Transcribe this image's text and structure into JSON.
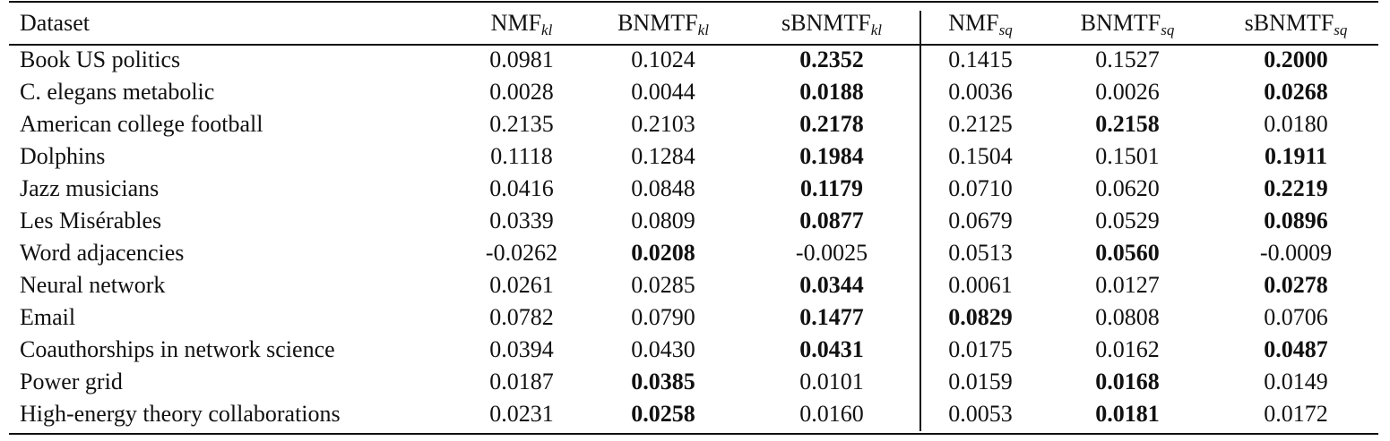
{
  "table": {
    "header": [
      {
        "name": "Dataset"
      },
      {
        "name": "NMF",
        "sub": "kl"
      },
      {
        "name": "BNMTF",
        "sub": "kl"
      },
      {
        "name": "sBNMTF",
        "sub": "kl"
      },
      {
        "name": "NMF",
        "sub": "sq"
      },
      {
        "name": "BNMTF",
        "sub": "sq"
      },
      {
        "name": "sBNMTF",
        "sub": "sq"
      }
    ],
    "rows": [
      {
        "dataset": "Book US politics",
        "values": [
          "0.0981",
          "0.1024",
          "0.2352",
          "0.1415",
          "0.1527",
          "0.2000"
        ],
        "bold": [
          2,
          5
        ]
      },
      {
        "dataset": "C. elegans metabolic",
        "values": [
          "0.0028",
          "0.0044",
          "0.0188",
          "0.0036",
          "0.0026",
          "0.0268"
        ],
        "bold": [
          2,
          5
        ]
      },
      {
        "dataset": "American college football",
        "values": [
          "0.2135",
          "0.2103",
          "0.2178",
          "0.2125",
          "0.2158",
          "0.0180"
        ],
        "bold": [
          2,
          4
        ]
      },
      {
        "dataset": "Dolphins",
        "values": [
          "0.1118",
          "0.1284",
          "0.1984",
          "0.1504",
          "0.1501",
          "0.1911"
        ],
        "bold": [
          2,
          5
        ]
      },
      {
        "dataset": "Jazz musicians",
        "values": [
          "0.0416",
          "0.0848",
          "0.1179",
          "0.0710",
          "0.0620",
          "0.2219"
        ],
        "bold": [
          2,
          5
        ]
      },
      {
        "dataset": "Les Misérables",
        "values": [
          "0.0339",
          "0.0809",
          "0.0877",
          "0.0679",
          "0.0529",
          "0.0896"
        ],
        "bold": [
          2,
          5
        ]
      },
      {
        "dataset": "Word adjacencies",
        "values": [
          "-0.0262",
          "0.0208",
          "-0.0025",
          "0.0513",
          "0.0560",
          "-0.0009"
        ],
        "bold": [
          1,
          4
        ]
      },
      {
        "dataset": "Neural network",
        "values": [
          "0.0261",
          "0.0285",
          "0.0344",
          "0.0061",
          "0.0127",
          "0.0278"
        ],
        "bold": [
          2,
          5
        ]
      },
      {
        "dataset": "Email",
        "values": [
          "0.0782",
          "0.0790",
          "0.1477",
          "0.0829",
          "0.0808",
          "0.0706"
        ],
        "bold": [
          2,
          3
        ]
      },
      {
        "dataset": "Coauthorships in network science",
        "values": [
          "0.0394",
          "0.0430",
          "0.0431",
          "0.0175",
          "0.0162",
          "0.0487"
        ],
        "bold": [
          2,
          5
        ]
      },
      {
        "dataset": "Power grid",
        "values": [
          "0.0187",
          "0.0385",
          "0.0101",
          "0.0159",
          "0.0168",
          "0.0149"
        ],
        "bold": [
          1,
          4
        ]
      },
      {
        "dataset": "High-energy theory collaborations",
        "values": [
          "0.0231",
          "0.0258",
          "0.0160",
          "0.0053",
          "0.0181",
          "0.0172"
        ],
        "bold": [
          1,
          4
        ]
      }
    ]
  }
}
